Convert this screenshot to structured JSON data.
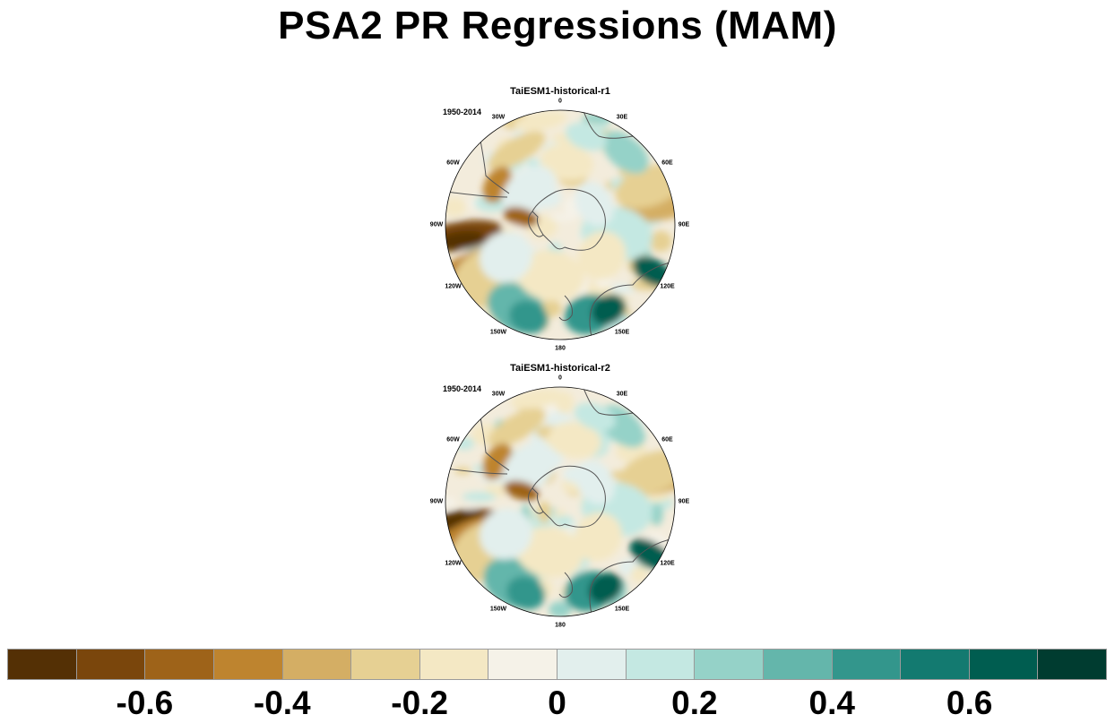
{
  "title": "PSA2 PR Regressions (MAM)",
  "panels": [
    {
      "label": "TaiESM1-historical-r1",
      "years": "1950-2014"
    },
    {
      "label": "TaiESM1-historical-r2",
      "years": "1950-2014"
    }
  ],
  "lon_labels": [
    "0",
    "30E",
    "60E",
    "90E",
    "120E",
    "150E",
    "180",
    "150W",
    "120W",
    "90W",
    "60W",
    "30W"
  ],
  "colorbar": {
    "colors": [
      "#543005",
      "#7a460c",
      "#9e6319",
      "#be842f",
      "#d4ae64",
      "#e6d093",
      "#f4e8c4",
      "#f5f2e8",
      "#e2efed",
      "#c4e8e2",
      "#95d2c8",
      "#64b6ab",
      "#33968c",
      "#137a70",
      "#005d50",
      "#003c30"
    ],
    "tick_labels": [
      "-0.6",
      "-0.4",
      "-0.2",
      "0",
      "0.2",
      "0.4",
      "0.6"
    ]
  }
}
